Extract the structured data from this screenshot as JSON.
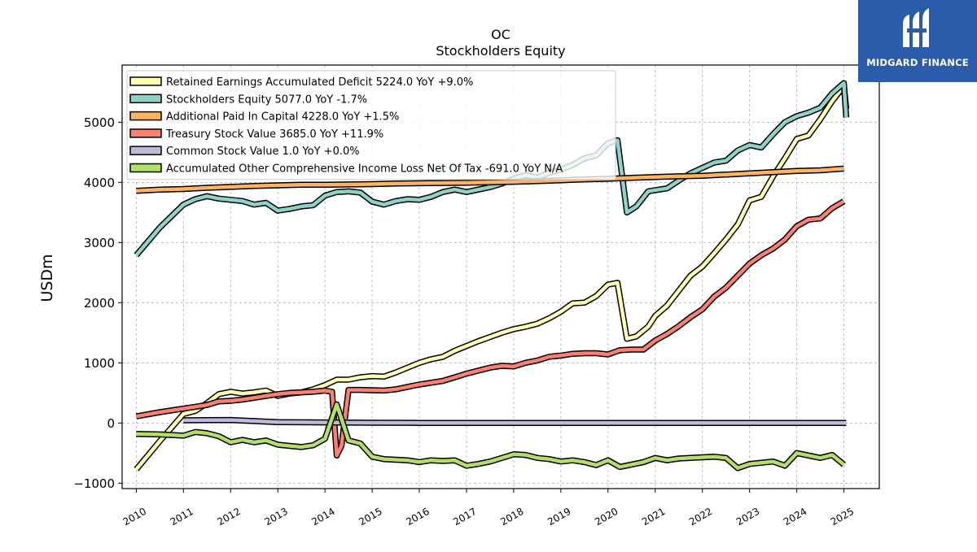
{
  "brand": {
    "name": "MIDGARD FINANCE",
    "bg": "#2b5cab"
  },
  "chart_data": {
    "type": "line",
    "title": "OC",
    "subtitle": "Stockholders  Equity",
    "ylabel": "USDm",
    "xlabel": "",
    "xlim": [
      2009.7,
      2025.75
    ],
    "ylim": [
      -1090,
      5950
    ],
    "yticks": [
      -1000,
      0,
      1000,
      2000,
      3000,
      4000,
      5000
    ],
    "xticks": [
      "2010",
      "2011",
      "2012",
      "2013",
      "2014",
      "2015",
      "2016",
      "2017",
      "2018",
      "2019",
      "2020",
      "2021",
      "2022",
      "2023",
      "2024",
      "2025"
    ],
    "grid": true,
    "legend_position": "top-left",
    "series": [
      {
        "name": "Retained Earnings Accumulated Deficit  5224.0 YoY +9.0%",
        "color": "#ffffb3",
        "points": [
          [
            2010,
            -770
          ],
          [
            2010.5,
            -300
          ],
          [
            2011,
            150
          ],
          [
            2011.25,
            200
          ],
          [
            2011.5,
            330
          ],
          [
            2011.75,
            480
          ],
          [
            2012,
            520
          ],
          [
            2012.25,
            490
          ],
          [
            2012.5,
            510
          ],
          [
            2012.75,
            540
          ],
          [
            2013,
            450
          ],
          [
            2013.25,
            490
          ],
          [
            2013.5,
            510
          ],
          [
            2013.75,
            560
          ],
          [
            2014,
            630
          ],
          [
            2014.25,
            720
          ],
          [
            2014.5,
            720
          ],
          [
            2014.75,
            760
          ],
          [
            2015,
            780
          ],
          [
            2015.25,
            770
          ],
          [
            2015.5,
            840
          ],
          [
            2015.75,
            920
          ],
          [
            2016,
            1000
          ],
          [
            2016.25,
            1060
          ],
          [
            2016.5,
            1100
          ],
          [
            2016.75,
            1200
          ],
          [
            2017,
            1280
          ],
          [
            2017.25,
            1360
          ],
          [
            2017.5,
            1430
          ],
          [
            2017.75,
            1500
          ],
          [
            2018,
            1560
          ],
          [
            2018.25,
            1600
          ],
          [
            2018.5,
            1650
          ],
          [
            2018.75,
            1740
          ],
          [
            2019,
            1850
          ],
          [
            2019.25,
            1990
          ],
          [
            2019.5,
            2000
          ],
          [
            2019.75,
            2110
          ],
          [
            2020,
            2300
          ],
          [
            2020.2,
            2330
          ],
          [
            2020.4,
            1400
          ],
          [
            2020.6,
            1440
          ],
          [
            2020.85,
            1600
          ],
          [
            2021,
            1780
          ],
          [
            2021.25,
            1950
          ],
          [
            2021.5,
            2200
          ],
          [
            2021.75,
            2450
          ],
          [
            2022,
            2600
          ],
          [
            2022.25,
            2820
          ],
          [
            2022.5,
            3050
          ],
          [
            2022.75,
            3300
          ],
          [
            2023,
            3700
          ],
          [
            2023.25,
            3760
          ],
          [
            2023.5,
            4100
          ],
          [
            2023.75,
            4400
          ],
          [
            2024,
            4720
          ],
          [
            2024.25,
            4780
          ],
          [
            2024.5,
            5050
          ],
          [
            2024.75,
            5350
          ],
          [
            2025,
            5600
          ],
          [
            2025.05,
            5224
          ]
        ]
      },
      {
        "name": "Stockholders Equity  5077.0 YoY -1.7%",
        "color": "#8dd3c7",
        "points": [
          [
            2010,
            2790
          ],
          [
            2010.5,
            3250
          ],
          [
            2011,
            3630
          ],
          [
            2011.25,
            3720
          ],
          [
            2011.5,
            3770
          ],
          [
            2011.75,
            3730
          ],
          [
            2012,
            3710
          ],
          [
            2012.25,
            3690
          ],
          [
            2012.5,
            3630
          ],
          [
            2012.75,
            3660
          ],
          [
            2013,
            3530
          ],
          [
            2013.25,
            3560
          ],
          [
            2013.5,
            3600
          ],
          [
            2013.75,
            3620
          ],
          [
            2014,
            3780
          ],
          [
            2014.25,
            3840
          ],
          [
            2014.5,
            3850
          ],
          [
            2014.75,
            3830
          ],
          [
            2015,
            3680
          ],
          [
            2015.25,
            3630
          ],
          [
            2015.5,
            3690
          ],
          [
            2015.75,
            3720
          ],
          [
            2016,
            3710
          ],
          [
            2016.25,
            3760
          ],
          [
            2016.5,
            3840
          ],
          [
            2016.75,
            3880
          ],
          [
            2017,
            3840
          ],
          [
            2017.25,
            3880
          ],
          [
            2017.5,
            3920
          ],
          [
            2017.75,
            3980
          ],
          [
            2018,
            4060
          ],
          [
            2018.25,
            4120
          ],
          [
            2018.5,
            4080
          ],
          [
            2018.75,
            4160
          ],
          [
            2019,
            4210
          ],
          [
            2019.25,
            4290
          ],
          [
            2019.5,
            4400
          ],
          [
            2019.75,
            4450
          ],
          [
            2020,
            4650
          ],
          [
            2020.2,
            4700
          ],
          [
            2020.4,
            3500
          ],
          [
            2020.6,
            3600
          ],
          [
            2020.85,
            3850
          ],
          [
            2021,
            3870
          ],
          [
            2021.25,
            3900
          ],
          [
            2021.5,
            4030
          ],
          [
            2021.75,
            4150
          ],
          [
            2022,
            4240
          ],
          [
            2022.25,
            4330
          ],
          [
            2022.5,
            4360
          ],
          [
            2022.75,
            4530
          ],
          [
            2023,
            4620
          ],
          [
            2023.25,
            4580
          ],
          [
            2023.5,
            4800
          ],
          [
            2023.75,
            5000
          ],
          [
            2024,
            5100
          ],
          [
            2024.25,
            5160
          ],
          [
            2024.5,
            5240
          ],
          [
            2024.75,
            5480
          ],
          [
            2025,
            5650
          ],
          [
            2025.05,
            5077
          ]
        ]
      },
      {
        "name": "Additional Paid In Capital  4228.0 YoY +1.5%",
        "color": "#fdb462",
        "points": [
          [
            2010,
            3860
          ],
          [
            2010.5,
            3880
          ],
          [
            2011,
            3890
          ],
          [
            2011.5,
            3910
          ],
          [
            2012,
            3925
          ],
          [
            2012.5,
            3940
          ],
          [
            2013,
            3950
          ],
          [
            2013.5,
            3960
          ],
          [
            2014,
            3960
          ],
          [
            2014.5,
            3965
          ],
          [
            2015,
            3970
          ],
          [
            2015.5,
            3980
          ],
          [
            2016,
            3985
          ],
          [
            2016.5,
            3990
          ],
          [
            2017,
            3995
          ],
          [
            2017.5,
            4000
          ],
          [
            2018,
            4010
          ],
          [
            2018.5,
            4020
          ],
          [
            2019,
            4035
          ],
          [
            2019.5,
            4050
          ],
          [
            2020,
            4060
          ],
          [
            2020.5,
            4075
          ],
          [
            2021,
            4090
          ],
          [
            2021.5,
            4100
          ],
          [
            2022,
            4110
          ],
          [
            2022.5,
            4130
          ],
          [
            2023,
            4150
          ],
          [
            2023.5,
            4170
          ],
          [
            2024,
            4190
          ],
          [
            2024.5,
            4200
          ],
          [
            2025,
            4228
          ]
        ]
      },
      {
        "name": "Treasury Stock Value  3685.0 YoY +11.9%",
        "color": "#fb8072",
        "points": [
          [
            2010,
            110
          ],
          [
            2010.5,
            180
          ],
          [
            2011,
            240
          ],
          [
            2011.25,
            270
          ],
          [
            2011.5,
            300
          ],
          [
            2011.75,
            360
          ],
          [
            2012,
            370
          ],
          [
            2012.25,
            390
          ],
          [
            2012.5,
            420
          ],
          [
            2012.75,
            450
          ],
          [
            2013,
            480
          ],
          [
            2013.25,
            500
          ],
          [
            2013.5,
            510
          ],
          [
            2013.75,
            520
          ],
          [
            2014,
            540
          ],
          [
            2014.15,
            520
          ],
          [
            2014.25,
            -540
          ],
          [
            2014.35,
            -380
          ],
          [
            2014.5,
            550
          ],
          [
            2014.75,
            550
          ],
          [
            2015,
            545
          ],
          [
            2015.25,
            540
          ],
          [
            2015.5,
            560
          ],
          [
            2015.75,
            600
          ],
          [
            2016,
            640
          ],
          [
            2016.25,
            670
          ],
          [
            2016.5,
            700
          ],
          [
            2016.75,
            760
          ],
          [
            2017,
            820
          ],
          [
            2017.25,
            870
          ],
          [
            2017.5,
            920
          ],
          [
            2017.75,
            950
          ],
          [
            2018,
            940
          ],
          [
            2018.25,
            1000
          ],
          [
            2018.5,
            1040
          ],
          [
            2018.75,
            1100
          ],
          [
            2019,
            1120
          ],
          [
            2019.25,
            1150
          ],
          [
            2019.5,
            1160
          ],
          [
            2019.75,
            1160
          ],
          [
            2020,
            1140
          ],
          [
            2020.25,
            1210
          ],
          [
            2020.5,
            1220
          ],
          [
            2020.75,
            1220
          ],
          [
            2021,
            1370
          ],
          [
            2021.25,
            1480
          ],
          [
            2021.5,
            1610
          ],
          [
            2021.75,
            1760
          ],
          [
            2022,
            1890
          ],
          [
            2022.25,
            2100
          ],
          [
            2022.5,
            2250
          ],
          [
            2022.75,
            2450
          ],
          [
            2023,
            2650
          ],
          [
            2023.25,
            2790
          ],
          [
            2023.5,
            2900
          ],
          [
            2023.75,
            3050
          ],
          [
            2024,
            3270
          ],
          [
            2024.25,
            3380
          ],
          [
            2024.5,
            3400
          ],
          [
            2024.75,
            3570
          ],
          [
            2025,
            3685
          ]
        ]
      },
      {
        "name": "Common Stock Value  1.0 YoY +0.0%",
        "color": "#bebada",
        "points": [
          [
            2011,
            45
          ],
          [
            2012,
            50
          ],
          [
            2013,
            15
          ],
          [
            2014,
            10
          ],
          [
            2015,
            5
          ],
          [
            2016,
            2
          ],
          [
            2017,
            1
          ],
          [
            2018,
            1
          ],
          [
            2019,
            1
          ],
          [
            2020,
            1
          ],
          [
            2021,
            1
          ],
          [
            2022,
            1
          ],
          [
            2023,
            1
          ],
          [
            2024,
            1
          ],
          [
            2025.05,
            1
          ]
        ]
      },
      {
        "name": "Accumulated Other Comprehensive Income Loss Net Of Tax  -691.0 YoY N/A",
        "color": "#b3de69",
        "points": [
          [
            2010,
            -180
          ],
          [
            2010.5,
            -190
          ],
          [
            2011,
            -210
          ],
          [
            2011.25,
            -150
          ],
          [
            2011.5,
            -170
          ],
          [
            2011.75,
            -220
          ],
          [
            2012,
            -320
          ],
          [
            2012.25,
            -280
          ],
          [
            2012.5,
            -320
          ],
          [
            2012.75,
            -290
          ],
          [
            2013,
            -360
          ],
          [
            2013.25,
            -380
          ],
          [
            2013.5,
            -400
          ],
          [
            2013.75,
            -370
          ],
          [
            2014,
            -260
          ],
          [
            2014.25,
            310
          ],
          [
            2014.5,
            -290
          ],
          [
            2014.75,
            -340
          ],
          [
            2015,
            -560
          ],
          [
            2015.25,
            -600
          ],
          [
            2015.5,
            -610
          ],
          [
            2015.75,
            -620
          ],
          [
            2016,
            -650
          ],
          [
            2016.25,
            -620
          ],
          [
            2016.5,
            -630
          ],
          [
            2016.75,
            -620
          ],
          [
            2017,
            -710
          ],
          [
            2017.25,
            -680
          ],
          [
            2017.5,
            -640
          ],
          [
            2017.75,
            -580
          ],
          [
            2018,
            -520
          ],
          [
            2018.25,
            -530
          ],
          [
            2018.5,
            -580
          ],
          [
            2018.75,
            -600
          ],
          [
            2019,
            -640
          ],
          [
            2019.25,
            -620
          ],
          [
            2019.5,
            -650
          ],
          [
            2019.75,
            -700
          ],
          [
            2020,
            -620
          ],
          [
            2020.25,
            -730
          ],
          [
            2020.5,
            -690
          ],
          [
            2020.75,
            -650
          ],
          [
            2021,
            -580
          ],
          [
            2021.25,
            -620
          ],
          [
            2021.5,
            -590
          ],
          [
            2021.75,
            -580
          ],
          [
            2022,
            -570
          ],
          [
            2022.25,
            -560
          ],
          [
            2022.5,
            -580
          ],
          [
            2022.75,
            -750
          ],
          [
            2023,
            -680
          ],
          [
            2023.25,
            -660
          ],
          [
            2023.5,
            -640
          ],
          [
            2023.75,
            -710
          ],
          [
            2024,
            -500
          ],
          [
            2024.25,
            -540
          ],
          [
            2024.5,
            -580
          ],
          [
            2024.75,
            -530
          ],
          [
            2025,
            -691
          ]
        ]
      }
    ]
  }
}
